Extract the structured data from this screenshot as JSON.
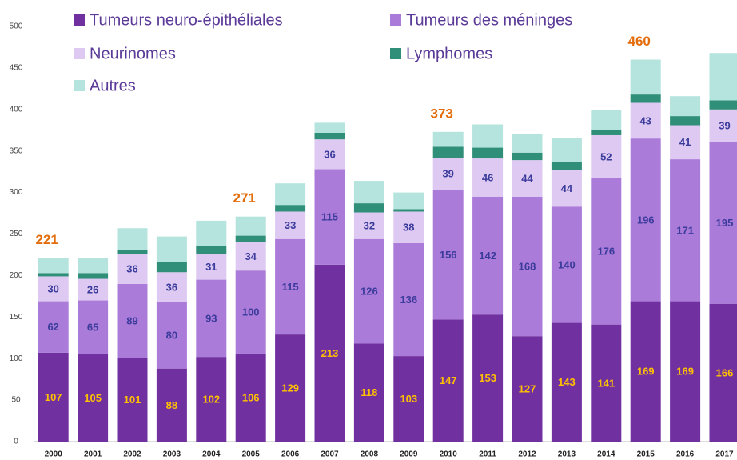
{
  "chart_data": {
    "type": "stacked_bar",
    "categories": [
      "2000",
      "2001",
      "2002",
      "2003",
      "2004",
      "2005",
      "2006",
      "2007",
      "2008",
      "2009",
      "2010",
      "2011",
      "2012",
      "2013",
      "2014",
      "2015",
      "2016",
      "2017"
    ],
    "series": [
      {
        "name": "Tumeurs neuro-épithéliales",
        "color": "#7030a0",
        "label_color": "#ffc000",
        "show_labels": true,
        "values": [
          107,
          105,
          101,
          88,
          102,
          106,
          129,
          213,
          118,
          103,
          147,
          153,
          127,
          143,
          141,
          169,
          169,
          166
        ]
      },
      {
        "name": "Tumeurs des méninges",
        "color": "#ab7bd9",
        "label_color": "#3b3b9c",
        "show_labels": true,
        "values": [
          62,
          65,
          89,
          80,
          93,
          100,
          115,
          115,
          126,
          136,
          156,
          142,
          168,
          140,
          176,
          196,
          171,
          195
        ]
      },
      {
        "name": "Neurinomes",
        "color": "#ddc9f1",
        "label_color": "#3b3b9c",
        "show_labels": true,
        "values": [
          30,
          26,
          36,
          36,
          31,
          34,
          33,
          36,
          32,
          38,
          39,
          46,
          44,
          44,
          52,
          43,
          41,
          39
        ]
      },
      {
        "name": "Lymphomes",
        "color": "#2f8f79",
        "show_labels": false,
        "values": [
          4,
          7,
          5,
          12,
          10,
          8,
          8,
          8,
          11,
          3,
          13,
          13,
          9,
          10,
          6,
          10,
          11,
          11
        ]
      },
      {
        "name": "Autres",
        "color": "#b4e4dd",
        "show_labels": false,
        "values": [
          18,
          18,
          26,
          31,
          30,
          23,
          26,
          12,
          27,
          20,
          18,
          28,
          22,
          29,
          24,
          42,
          24,
          57
        ]
      }
    ],
    "annotations": [
      {
        "x": "2000",
        "value": 221
      },
      {
        "x": "2005",
        "value": 271
      },
      {
        "x": "2010",
        "value": 373
      },
      {
        "x": "2015",
        "value": 460
      }
    ],
    "ylim": [
      0,
      500
    ],
    "yticks": [
      0,
      50,
      100,
      150,
      200,
      250,
      300,
      350,
      400,
      450,
      500
    ],
    "grid": false
  }
}
